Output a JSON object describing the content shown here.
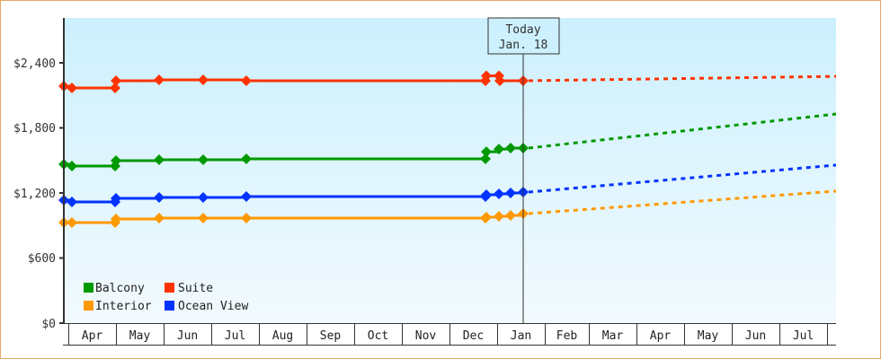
{
  "chart_data": {
    "type": "line",
    "title": "",
    "xlabel": "",
    "ylabel": "",
    "ylim": [
      0,
      2800
    ],
    "y_ticks": [
      "$0",
      "$600",
      "$1,200",
      "$1,800",
      "$2,400"
    ],
    "y_tick_values": [
      0,
      600,
      1200,
      1800,
      2400
    ],
    "x_ticks": [
      "Apr",
      "May",
      "Jun",
      "Jul",
      "Aug",
      "Sep",
      "Oct",
      "Nov",
      "Dec",
      "Jan",
      "Feb",
      "Mar",
      "Apr",
      "May",
      "Jun",
      "Jul"
    ],
    "grid": false,
    "legend_position": "lower-left inside",
    "today_marker": {
      "line1": "Today",
      "line2": "Jan. 18"
    },
    "series": [
      {
        "name": "Balcony",
        "color": "#009900",
        "historical": [
          [
            71,
            1465
          ],
          [
            80,
            1448
          ],
          [
            128,
            1448
          ],
          [
            129,
            1498
          ],
          [
            177,
            1506
          ],
          [
            226,
            1506
          ],
          [
            274,
            1515
          ],
          [
            540,
            1515
          ],
          [
            541,
            1580
          ],
          [
            555,
            1605
          ],
          [
            568,
            1614
          ],
          [
            582,
            1614
          ]
        ],
        "forecast": [
          [
            582,
            1614
          ],
          [
            930,
            1928
          ]
        ]
      },
      {
        "name": "Suite",
        "color": "#ff3300",
        "historical": [
          [
            71,
            2185
          ],
          [
            80,
            2168
          ],
          [
            128,
            2168
          ],
          [
            129,
            2235
          ],
          [
            177,
            2243
          ],
          [
            226,
            2243
          ],
          [
            274,
            2235
          ],
          [
            540,
            2235
          ],
          [
            541,
            2280
          ],
          [
            555,
            2280
          ],
          [
            556,
            2235
          ],
          [
            582,
            2235
          ]
        ],
        "forecast": [
          [
            582,
            2235
          ],
          [
            930,
            2275
          ]
        ]
      },
      {
        "name": "Interior",
        "color": "#ff9900",
        "historical": [
          [
            71,
            927
          ],
          [
            80,
            927
          ],
          [
            128,
            927
          ],
          [
            129,
            960
          ],
          [
            177,
            968
          ],
          [
            226,
            968
          ],
          [
            274,
            968
          ],
          [
            540,
            968
          ],
          [
            541,
            977
          ],
          [
            555,
            985
          ],
          [
            568,
            993
          ],
          [
            582,
            1010
          ]
        ],
        "forecast": [
          [
            582,
            1010
          ],
          [
            930,
            1217
          ]
        ]
      },
      {
        "name": "Ocean View",
        "color": "#0033ff",
        "historical": [
          [
            71,
            1134
          ],
          [
            80,
            1117
          ],
          [
            128,
            1117
          ],
          [
            129,
            1150
          ],
          [
            177,
            1159
          ],
          [
            226,
            1159
          ],
          [
            274,
            1167
          ],
          [
            540,
            1167
          ],
          [
            541,
            1183
          ],
          [
            555,
            1192
          ],
          [
            568,
            1200
          ],
          [
            582,
            1208
          ]
        ],
        "forecast": [
          [
            582,
            1208
          ],
          [
            930,
            1457
          ]
        ]
      }
    ]
  },
  "legend": {
    "items": [
      {
        "label": "Balcony",
        "color": "#009900"
      },
      {
        "label": "Suite",
        "color": "#ff3300"
      },
      {
        "label": "Interior",
        "color": "#ff9900"
      },
      {
        "label": "Ocean View",
        "color": "#0033ff"
      }
    ]
  },
  "today": {
    "line1": "Today",
    "line2": "Jan. 18"
  },
  "axis": {
    "y_labels": [
      "$2,400",
      "$1,800",
      "$1,200",
      "$600",
      "$0"
    ],
    "x_labels": [
      "Apr",
      "May",
      "Jun",
      "Jul",
      "Aug",
      "Sep",
      "Oct",
      "Nov",
      "Dec",
      "Jan",
      "Feb",
      "Mar",
      "Apr",
      "May",
      "Jun",
      "Jul"
    ]
  }
}
